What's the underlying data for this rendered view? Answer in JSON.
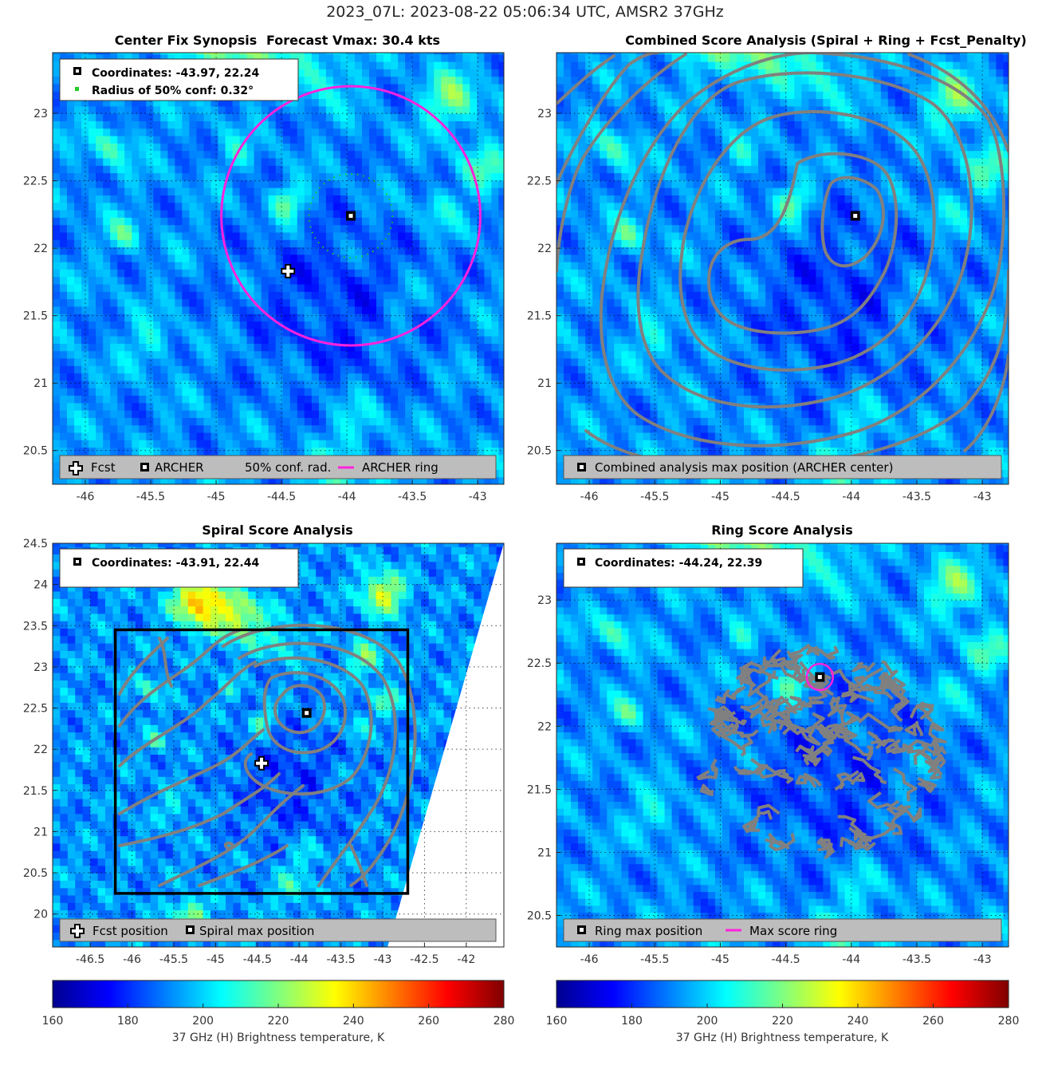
{
  "figure": {
    "suptitle": "2023_07L: 2023-08-22 05:06:34 UTC, AMSR2 37GHz"
  },
  "panels": {
    "synopsis": {
      "title": "Center Fix Synopsis",
      "subtitle": "Forecast Vmax: 30.4 kts",
      "info_coords": "Coordinates: -43.97, 22.24",
      "info_radius": "Radius of 50% conf: 0.32°",
      "legend": [
        "Fcst",
        "ARCHER",
        "50% conf. rad.",
        "ARCHER ring"
      ]
    },
    "combined": {
      "title": "Combined Score Analysis (Spiral + Ring + Fcst_Penalty)",
      "legend": [
        "Combined analysis max position (ARCHER center)"
      ]
    },
    "spiral": {
      "title": "Spiral Score Analysis",
      "info_coords": "Coordinates: -43.91, 22.44",
      "legend": [
        "Fcst position",
        "Spiral max position"
      ]
    },
    "ring": {
      "title": "Ring Score Analysis",
      "info_coords": "Coordinates: -44.24, 22.39",
      "legend": [
        "Ring max position",
        "Max score ring"
      ]
    }
  },
  "colorbars": {
    "label": "37 GHz (H) Brightness temperature, K",
    "ticks": [
      "160",
      "180",
      "200",
      "220",
      "240",
      "260",
      "280"
    ]
  },
  "colors": {
    "archer_ring": "#ff22dd",
    "contour": "#808080",
    "conf_dots": "#22cc22",
    "legend_bg": "#bdbdbd"
  },
  "chart_data": [
    {
      "type": "heatmap",
      "panel": "synopsis",
      "title": "Center Fix Synopsis     Forecast Vmax: 30.4 kts",
      "xlim": [
        -46.25,
        -42.8
      ],
      "ylim": [
        20.25,
        23.45
      ],
      "xticks": [
        -46,
        -45.5,
        -45,
        -44.5,
        -44,
        -43.5,
        -43
      ],
      "yticks": [
        20.5,
        21,
        21.5,
        22,
        22.5,
        23
      ],
      "color_range_K": [
        160,
        280
      ],
      "forecast_position": [
        -44.45,
        21.83
      ],
      "archer_center": [
        -43.97,
        22.24
      ],
      "archer_ring_radius_deg": 0.99,
      "conf_radius_deg": 0.32
    },
    {
      "type": "heatmap",
      "panel": "combined",
      "title": "Combined Score Analysis (Spiral + Ring + Fcst_Penalty)",
      "xlim": [
        -46.25,
        -42.8
      ],
      "ylim": [
        20.25,
        23.45
      ],
      "xticks": [
        -46,
        -45.5,
        -45,
        -44.5,
        -44,
        -43.5,
        -43
      ],
      "yticks": [
        20.5,
        21,
        21.5,
        22,
        22.5,
        23
      ],
      "max_position": [
        -43.97,
        22.24
      ]
    },
    {
      "type": "heatmap",
      "panel": "spiral",
      "title": "Spiral Score Analysis",
      "xlim": [
        -46.95,
        -41.55
      ],
      "ylim": [
        19.6,
        24.5
      ],
      "xticks": [
        -46.5,
        -46,
        -45.5,
        -45,
        -44.5,
        -44,
        -43.5,
        -43,
        -42.5,
        -42
      ],
      "yticks": [
        20,
        20.5,
        21,
        21.5,
        22,
        22.5,
        23,
        23.5,
        24,
        24.5
      ],
      "forecast_position": [
        -44.45,
        21.83
      ],
      "spiral_max_position": [
        -43.91,
        22.44
      ],
      "search_box": {
        "lon": [
          -46.2,
          -42.7
        ],
        "lat": [
          20.25,
          23.45
        ]
      }
    },
    {
      "type": "heatmap",
      "panel": "ring",
      "title": "Ring Score Analysis",
      "xlim": [
        -46.25,
        -42.8
      ],
      "ylim": [
        20.25,
        23.45
      ],
      "xticks": [
        -46,
        -45.5,
        -45,
        -44.5,
        -44,
        -43.5,
        -43
      ],
      "yticks": [
        20.5,
        21,
        21.5,
        22,
        22.5,
        23
      ],
      "ring_max_position": [
        -44.24,
        22.39
      ],
      "max_score_ring_radius_deg": 0.1
    }
  ]
}
